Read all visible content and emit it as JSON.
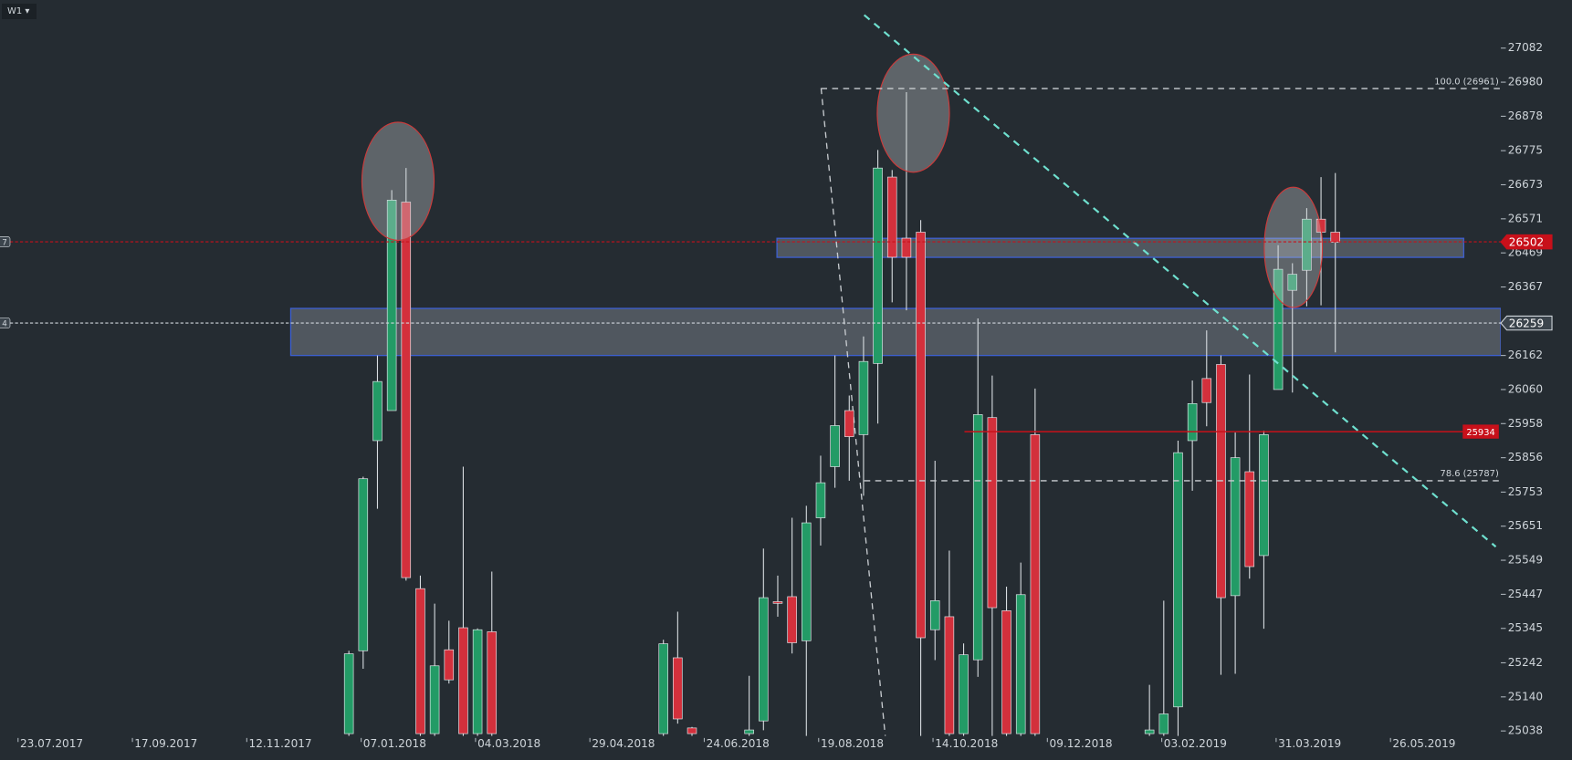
{
  "timeframe": "W1",
  "chart_data": {
    "type": "candlestick",
    "up_color": "#239b66",
    "down_color": "#d3303c",
    "ylim": [
      25023,
      27226
    ],
    "yticks": [
      25038,
      25140,
      25242,
      25345,
      25447,
      25549,
      25651,
      25753,
      25856,
      25958,
      26060,
      26162,
      26367,
      26469,
      26571,
      26673,
      26775,
      26878,
      26980,
      27082
    ],
    "xticks": [
      "23.07.2017",
      "17.09.2017",
      "12.11.2017",
      "07.01.2018",
      "04.03.2018",
      "29.04.2018",
      "24.06.2018",
      "19.08.2018",
      "14.10.2018",
      "09.12.2018",
      "03.02.2019",
      "31.03.2019",
      "26.05.2019"
    ],
    "candles": [
      {
        "date": "31.12.2017",
        "open": 25030,
        "high": 25278,
        "low": 25020,
        "close": 25269
      },
      {
        "date": "07.01.2018",
        "open": 25278,
        "high": 25799,
        "low": 25224,
        "close": 25793
      },
      {
        "date": "14.01.2018",
        "open": 25907,
        "high": 26162,
        "low": 25703,
        "close": 26084
      },
      {
        "date": "21.01.2018",
        "open": 25997,
        "high": 26657,
        "low": 25997,
        "close": 26627
      },
      {
        "date": "28.01.2018",
        "open": 26621,
        "high": 26723,
        "low": 25488,
        "close": 25497
      },
      {
        "date": "04.02.2018",
        "open": 25464,
        "high": 25503,
        "low": 25020,
        "close": 25030
      },
      {
        "date": "11.02.2018",
        "open": 25030,
        "high": 25419,
        "low": 25020,
        "close": 25233
      },
      {
        "date": "18.02.2018",
        "open": 25281,
        "high": 25368,
        "low": 25180,
        "close": 25191
      },
      {
        "date": "25.02.2018",
        "open": 25347,
        "high": 25829,
        "low": 25020,
        "close": 25030
      },
      {
        "date": "04.03.2018",
        "open": 25030,
        "high": 25345,
        "low": 25020,
        "close": 25341
      },
      {
        "date": "11.03.2018",
        "open": 25335,
        "high": 25515,
        "low": 25020,
        "close": 25030
      },
      {
        "date": "03.06.2018",
        "open": 25030,
        "high": 25311,
        "low": 25020,
        "close": 25299
      },
      {
        "date": "10.06.2018",
        "open": 25257,
        "high": 25395,
        "low": 25060,
        "close": 25074
      },
      {
        "date": "17.06.2018",
        "open": 25047,
        "high": 25050,
        "low": 25020,
        "close": 25030
      },
      {
        "date": "15.07.2018",
        "open": 25030,
        "high": 25203,
        "low": 25020,
        "close": 25041
      },
      {
        "date": "22.07.2018",
        "open": 25068,
        "high": 25584,
        "low": 25040,
        "close": 25437
      },
      {
        "date": "29.07.2018",
        "open": 25425,
        "high": 25503,
        "low": 25380,
        "close": 25420
      },
      {
        "date": "05.08.2018",
        "open": 25440,
        "high": 25676,
        "low": 25270,
        "close": 25302
      },
      {
        "date": "12.08.2018",
        "open": 25308,
        "high": 25712,
        "low": 25020,
        "close": 25661
      },
      {
        "date": "19.08.2018",
        "open": 25676,
        "high": 25862,
        "low": 25593,
        "close": 25781
      },
      {
        "date": "26.08.2018",
        "open": 25829,
        "high": 26162,
        "low": 25766,
        "close": 25952
      },
      {
        "date": "02.09.2018",
        "open": 25997,
        "high": 26042,
        "low": 25787,
        "close": 25919
      },
      {
        "date": "09.09.2018",
        "open": 25925,
        "high": 26219,
        "low": 25742,
        "close": 26144
      },
      {
        "date": "16.09.2018",
        "open": 26138,
        "high": 26777,
        "low": 25958,
        "close": 26723
      },
      {
        "date": "23.09.2018",
        "open": 26696,
        "high": 26717,
        "low": 26321,
        "close": 26456
      },
      {
        "date": "30.09.2018",
        "open": 26513,
        "high": 26950,
        "low": 26297,
        "close": 26456
      },
      {
        "date": "07.10.2018",
        "open": 26531,
        "high": 26567,
        "low": 25020,
        "close": 25317
      },
      {
        "date": "14.10.2018",
        "open": 25341,
        "high": 25847,
        "low": 25250,
        "close": 25428
      },
      {
        "date": "21.10.2018",
        "open": 25380,
        "high": 25578,
        "low": 25020,
        "close": 25030
      },
      {
        "date": "28.10.2018",
        "open": 25030,
        "high": 25300,
        "low": 25020,
        "close": 25266
      },
      {
        "date": "04.11.2018",
        "open": 25251,
        "high": 26273,
        "low": 25200,
        "close": 25985
      },
      {
        "date": "11.11.2018",
        "open": 25976,
        "high": 26102,
        "low": 25020,
        "close": 25407
      },
      {
        "date": "18.11.2018",
        "open": 25398,
        "high": 25470,
        "low": 25020,
        "close": 25030
      },
      {
        "date": "25.11.2018",
        "open": 25030,
        "high": 25542,
        "low": 25020,
        "close": 25446
      },
      {
        "date": "02.12.2018",
        "open": 25925,
        "high": 26063,
        "low": 25020,
        "close": 25030
      },
      {
        "date": "27.01.2019",
        "open": 25030,
        "high": 25176,
        "low": 25020,
        "close": 25041
      },
      {
        "date": "03.02.2019",
        "open": 25030,
        "high": 25428,
        "low": 25020,
        "close": 25089
      },
      {
        "date": "10.02.2019",
        "open": 25110,
        "high": 25907,
        "low": 25020,
        "close": 25871
      },
      {
        "date": "17.02.2019",
        "open": 25907,
        "high": 26087,
        "low": 25757,
        "close": 26018
      },
      {
        "date": "24.02.2019",
        "open": 26093,
        "high": 26237,
        "low": 25950,
        "close": 26021
      },
      {
        "date": "03.03.2019",
        "open": 26135,
        "high": 26162,
        "low": 25206,
        "close": 25437
      },
      {
        "date": "10.03.2019",
        "open": 25443,
        "high": 25931,
        "low": 25209,
        "close": 25856
      },
      {
        "date": "17.03.2019",
        "open": 25814,
        "high": 26105,
        "low": 25494,
        "close": 25530
      },
      {
        "date": "24.03.2019",
        "open": 25563,
        "high": 25937,
        "low": 25344,
        "close": 25925
      },
      {
        "date": "31.03.2019",
        "open": 26060,
        "high": 26492,
        "low": 26060,
        "close": 26420
      },
      {
        "date": "07.04.2019",
        "open": 26357,
        "high": 26438,
        "low": 26051,
        "close": 26405
      },
      {
        "date": "14.04.2019",
        "open": 26417,
        "high": 26603,
        "low": 26309,
        "close": 26570
      },
      {
        "date": "21.04.2019",
        "open": 26570,
        "high": 26696,
        "low": 26312,
        "close": 26531
      },
      {
        "date": "28.04.2019",
        "open": 26531,
        "high": 26708,
        "low": 26171,
        "close": 26501
      }
    ],
    "price_levels": [
      {
        "value": 26502,
        "color": "#c8101a",
        "style": "dashed",
        "side": "7"
      },
      {
        "value": 26259,
        "color": "#d0d6dc",
        "style": "dashed",
        "side": "4"
      },
      {
        "value": 25934,
        "color": "#c8101a",
        "style": "solid"
      }
    ],
    "fib_levels": [
      {
        "label": "100.0 (26961)",
        "value": 26961
      },
      {
        "label": "78.6 (25787)",
        "value": 25787
      }
    ]
  }
}
